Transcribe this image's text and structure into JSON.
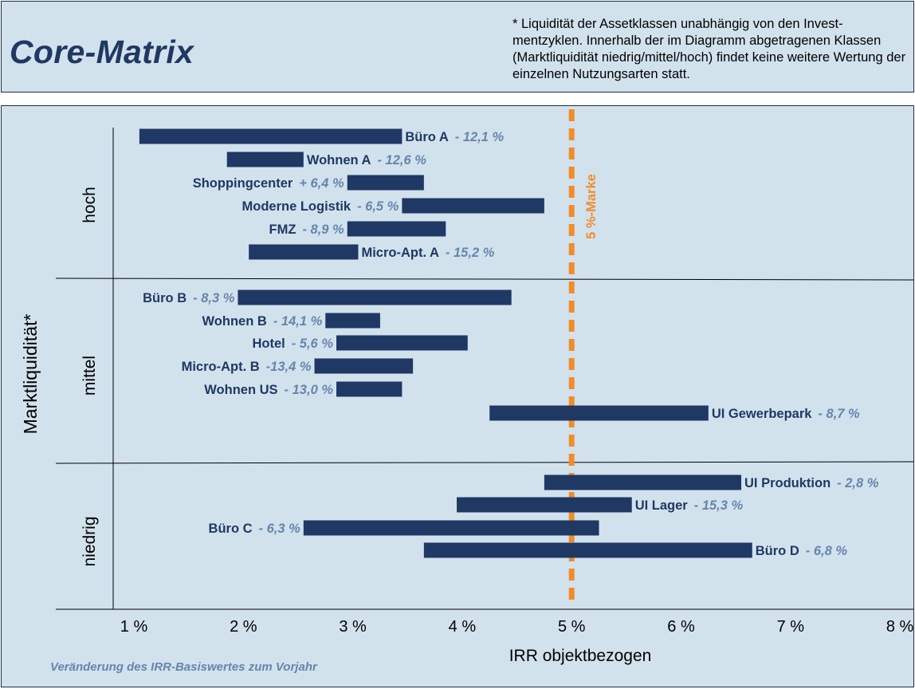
{
  "header": {
    "title": "Core-Matrix",
    "footnote": "* Liquidität der Assetklassen unabhängig von den Invest-mentzyklen. Innerhalb der im Diagramm abgetragenen Klassen (Marktliquidität niedrig/mittel/hoch) findet keine weitere Wertung der einzelnen Nutzungsarten statt."
  },
  "chart_data": {
    "type": "bar",
    "subtype": "floating-range-bar",
    "xlabel": "IRR objektbezogen",
    "ylabel": "Marktliquidität*",
    "xlim": [
      1,
      8
    ],
    "x_ticks": [
      "1 %",
      "2 %",
      "3 %",
      "4 %",
      "5 %",
      "6 %",
      "7 %",
      "8 %"
    ],
    "subtitle": "Veränderung des IRR-Basiswertes zum Vorjahr",
    "reference_line": {
      "x": 5.0,
      "label": "5 %-Marke",
      "color": "#f28c28"
    },
    "bar_color": "#1f3864",
    "groups": [
      {
        "name": "hoch",
        "bars": [
          {
            "name": "Büro A",
            "change": "- 12,1 %",
            "start": 1.05,
            "end": 3.45,
            "label_side": "right"
          },
          {
            "name": "Wohnen A",
            "change": "- 12,6 %",
            "start": 1.85,
            "end": 2.55,
            "label_side": "right"
          },
          {
            "name": "Shoppingcenter",
            "change": "+ 6,4 %",
            "start": 2.95,
            "end": 3.65,
            "label_side": "left"
          },
          {
            "name": "Moderne Logistik",
            "change": "- 6,5 %",
            "start": 3.45,
            "end": 4.75,
            "label_side": "left"
          },
          {
            "name": "FMZ",
            "change": "- 8,9 %",
            "start": 2.95,
            "end": 3.85,
            "label_side": "left"
          },
          {
            "name": "Micro-Apt. A",
            "change": "- 15,2 %",
            "start": 2.05,
            "end": 3.05,
            "label_side": "right"
          }
        ]
      },
      {
        "name": "mittel",
        "bars": [
          {
            "name": "Büro B",
            "change": "- 8,3 %",
            "start": 1.95,
            "end": 4.45,
            "label_side": "left"
          },
          {
            "name": "Wohnen B",
            "change": "- 14,1 %",
            "start": 2.75,
            "end": 3.25,
            "label_side": "left"
          },
          {
            "name": "Hotel",
            "change": "- 5,6 %",
            "start": 2.85,
            "end": 4.05,
            "label_side": "left"
          },
          {
            "name": "Micro-Apt. B",
            "change": "-13,4 %",
            "start": 2.65,
            "end": 3.55,
            "label_side": "left"
          },
          {
            "name": "Wohnen US",
            "change": "- 13,0 %",
            "start": 2.85,
            "end": 3.45,
            "label_side": "left"
          },
          {
            "name": "UI Gewerbepark",
            "change": "- 8,7 %",
            "start": 4.25,
            "end": 6.25,
            "label_side": "right"
          }
        ]
      },
      {
        "name": "niedrig",
        "bars": [
          {
            "name": "UI Produktion",
            "change": "- 2,8 %",
            "start": 4.75,
            "end": 6.55,
            "label_side": "right"
          },
          {
            "name": "UI Lager",
            "change": "- 15,3 %",
            "start": 3.95,
            "end": 5.55,
            "label_side": "right"
          },
          {
            "name": "Büro C",
            "change": "- 6,3 %",
            "start": 2.55,
            "end": 5.25,
            "label_side": "left"
          },
          {
            "name": "Büro D",
            "change": "- 6,8 %",
            "start": 3.65,
            "end": 6.65,
            "label_side": "right"
          }
        ]
      }
    ]
  }
}
